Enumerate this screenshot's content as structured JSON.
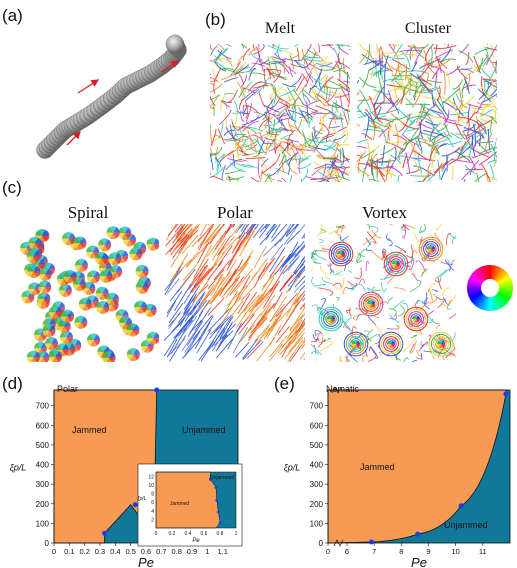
{
  "figure": {
    "labels": {
      "a": "(a)",
      "b": "(b)",
      "c": "(c)",
      "d": "(d)",
      "e": "(e)"
    },
    "row_b_titles": [
      "Melt",
      "Cluster"
    ],
    "row_c_titles": [
      "Spiral",
      "Polar",
      "Vortex"
    ],
    "color_wheel_icon": "hue-color-wheel"
  },
  "colors": {
    "jammed": "#F79A53",
    "unjammed": "#107898",
    "point": "#1E3DE8",
    "arrow": "#D8202A"
  },
  "chart_data": [
    {
      "type": "area",
      "panel": "(d)",
      "xlabel": "Pe",
      "ylabel": "ξp/L",
      "corner_label": "Polar",
      "region_labels": [
        "Jammed",
        "Unjammed"
      ],
      "xlim": [
        0,
        1.2
      ],
      "ylim": [
        0,
        780
      ],
      "xticks": [
        "0",
        "0.1",
        "0.2",
        "0.3",
        "0.4",
        "0.5",
        "0.6",
        "0.7",
        "0.8",
        "0.9",
        "1",
        "1.1"
      ],
      "yticks": [
        "0",
        "100",
        "200",
        "300",
        "400",
        "500",
        "600",
        "700"
      ],
      "boundary": [
        [
          0.33,
          50
        ],
        [
          0.5,
          195
        ],
        [
          0.65,
          40
        ],
        [
          0.67,
          780
        ],
        [
          1.2,
          780
        ]
      ],
      "points": [
        [
          0.33,
          50
        ],
        [
          0.53,
          195
        ],
        [
          0.67,
          780
        ],
        [
          0.67,
          15
        ],
        [
          0.85,
          10
        ],
        [
          1.17,
          5
        ]
      ],
      "inset": {
        "xlim": [
          0,
          1
        ],
        "ylim": [
          0,
          13
        ],
        "xticks": [
          "0",
          "0.2",
          "0.4",
          "0.6",
          "0.8",
          "1"
        ],
        "yticks": [
          "2",
          "4",
          "6",
          "8",
          "10",
          "12"
        ],
        "xlabel": "Pe",
        "ylabel": "ξp/L",
        "region_labels": [
          "Jammed",
          "Unjammed"
        ],
        "points": [
          [
            0.68,
            11.3
          ],
          [
            0.75,
            9.4
          ],
          [
            0.76,
            6.4
          ],
          [
            0.78,
            3.7
          ],
          [
            0.8,
            1.2
          ]
        ]
      }
    },
    {
      "type": "area",
      "panel": "(e)",
      "xlabel": "Pe",
      "ylabel": "ξp/L",
      "corner_label": "Nematic",
      "region_labels": [
        "Jammed",
        "Unjammed"
      ],
      "xlim": [
        5.3,
        12
      ],
      "ylim": [
        0,
        780
      ],
      "xticks": [
        "0",
        "6",
        "7",
        "8",
        "9",
        "10",
        "11"
      ],
      "yticks": [
        "0",
        "100",
        "200",
        "300",
        "400",
        "500",
        "600",
        "700"
      ],
      "axis_break": true,
      "points": [
        [
          6.9,
          5
        ],
        [
          8.6,
          45
        ],
        [
          10.2,
          190
        ],
        [
          11.85,
          760
        ]
      ]
    }
  ]
}
